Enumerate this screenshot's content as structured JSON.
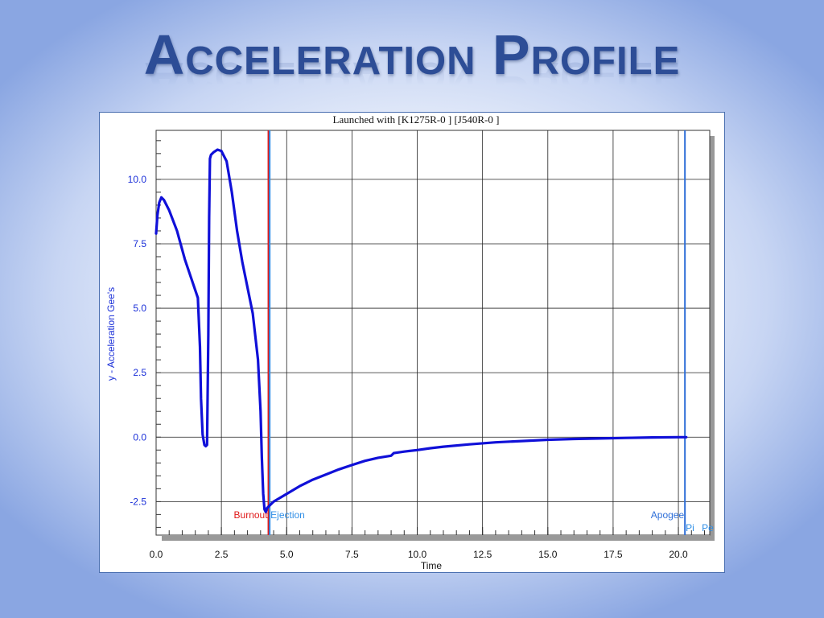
{
  "slide": {
    "title": "Acceleration Profile"
  },
  "chart_data": {
    "type": "line",
    "title": "Launched with [K1275R-0   ] [J540R-0   ]",
    "xlabel": "Time",
    "ylabel": "y - Acceleration Gee's",
    "xlim": [
      0,
      21.2
    ],
    "ylim": [
      -3.8,
      11.9
    ],
    "x_ticks": [
      0.0,
      2.5,
      5.0,
      7.5,
      10.0,
      12.5,
      15.0,
      17.5,
      20.0
    ],
    "x_tick_labels": [
      "0.0",
      "2.5",
      "5.0",
      "7.5",
      "10.0",
      "12.5",
      "15.0",
      "17.5",
      "20.0"
    ],
    "y_ticks": [
      -2.5,
      0.0,
      2.5,
      5.0,
      7.5,
      10.0
    ],
    "y_tick_labels": [
      "-2.5",
      "0.0",
      "2.5",
      "5.0",
      "7.5",
      "10.0"
    ],
    "grid": true,
    "series": [
      {
        "color": "#1010d8",
        "x": [
          0.0,
          0.05,
          0.12,
          0.2,
          0.3,
          0.5,
          0.8,
          1.1,
          1.4,
          1.6,
          1.68,
          1.72,
          1.78,
          1.85,
          1.9,
          1.95,
          2.0,
          2.03,
          2.06,
          2.1,
          2.2,
          2.35,
          2.5,
          2.7,
          2.9,
          3.1,
          3.3,
          3.5,
          3.7,
          3.9,
          4.0,
          4.05,
          4.1,
          4.15,
          4.2,
          4.25,
          4.3,
          4.5,
          5.0,
          5.5,
          6.0,
          6.5,
          7.0,
          7.5,
          8.0,
          8.5,
          9.0,
          9.1,
          9.5,
          10.0,
          10.5,
          11.0,
          12.0,
          13.0,
          14.0,
          15.0,
          16.0,
          17.0,
          18.0,
          19.0,
          20.0,
          20.3
        ],
        "y": [
          7.9,
          8.6,
          9.1,
          9.3,
          9.2,
          8.8,
          8.0,
          6.9,
          6.0,
          5.4,
          3.5,
          1.5,
          0.1,
          -0.3,
          -0.35,
          -0.3,
          4.0,
          8.5,
          10.8,
          10.95,
          11.05,
          11.15,
          11.1,
          10.7,
          9.5,
          8.0,
          6.8,
          5.8,
          4.8,
          3.0,
          1.0,
          -0.8,
          -2.2,
          -2.8,
          -2.9,
          -2.75,
          -2.7,
          -2.5,
          -2.2,
          -1.9,
          -1.65,
          -1.45,
          -1.25,
          -1.08,
          -0.92,
          -0.8,
          -0.72,
          -0.62,
          -0.56,
          -0.5,
          -0.43,
          -0.37,
          -0.28,
          -0.2,
          -0.15,
          -0.1,
          -0.07,
          -0.05,
          -0.03,
          -0.01,
          0.0,
          0.0
        ]
      }
    ],
    "markers": [
      {
        "x": 4.3,
        "label": "Burnout",
        "color": "#e01818"
      },
      {
        "x": 4.35,
        "label": "Ejection",
        "color": "#2f8ee6"
      },
      {
        "x": 20.25,
        "label": "Apogee",
        "color": "#2f6fd8"
      }
    ],
    "marker_extra_labels": [
      "Pi",
      "Pe"
    ]
  }
}
